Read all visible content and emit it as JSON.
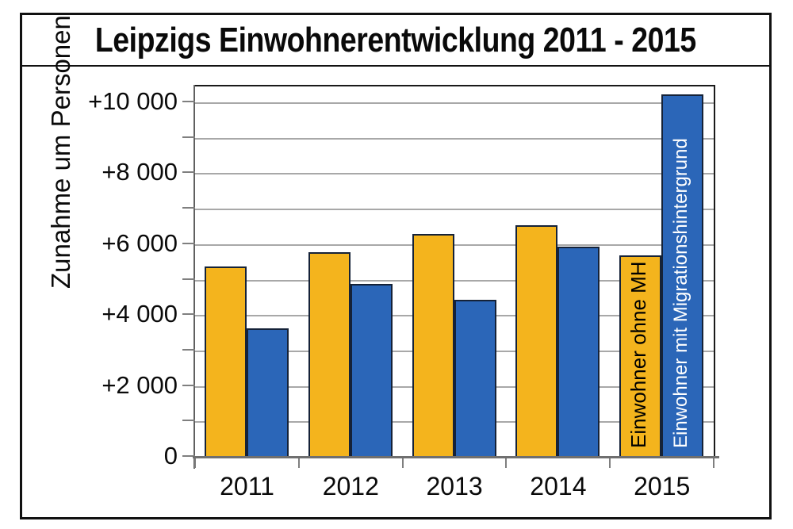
{
  "chart_data": {
    "type": "bar",
    "title": "Leipzigs Einwohnerentwicklung 2011 - 2015",
    "xlabel": "",
    "ylabel": "Zunahme um Personen",
    "categories": [
      "2011",
      "2012",
      "2013",
      "2014",
      "2015"
    ],
    "series": [
      {
        "name": "Einwohner ohne MH",
        "color": "#F4B41D",
        "label_color": "#000000",
        "values": [
          5400,
          5800,
          6300,
          6550,
          5700
        ]
      },
      {
        "name": "Einwohner mit Migrationshintergrund",
        "color": "#2B66B8",
        "label_color": "#FFFFFF",
        "values": [
          3650,
          4900,
          4450,
          5950,
          10250
        ]
      }
    ],
    "ylim": [
      0,
      10470
    ],
    "y_tick_interval": 1000,
    "y_label_interval": 2000,
    "y_tick_labels": [
      "0",
      "+2 000",
      "+4 000",
      "+6 000",
      "+8 000",
      "+10 000"
    ],
    "grid": true,
    "legend_position": "labels inside last-category bars",
    "bar_outline_color": "#152238",
    "gridline_color": "#A8A8A8",
    "axis_color": "#6F6F6F"
  }
}
